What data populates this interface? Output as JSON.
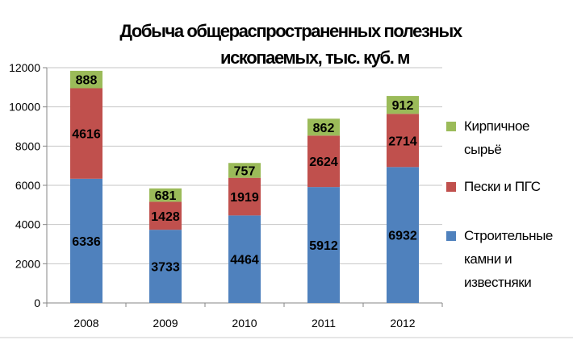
{
  "chart_data": {
    "type": "bar",
    "stacked": true,
    "title": "Добыча общераспространенных полезных ископаемых, тыс. куб. м",
    "title_lines": [
      "Добыча общераспространенных полезных",
      "ископаемых, тыс. куб. м"
    ],
    "categories": [
      "2008",
      "2009",
      "2010",
      "2011",
      "2012"
    ],
    "series": [
      {
        "name": "Строительные камни и известняки",
        "name_lines": [
          "Строительные",
          "камни и",
          "известняки"
        ],
        "color": "#4f81bd",
        "values": [
          6336,
          3733,
          4464,
          5912,
          6932
        ]
      },
      {
        "name": "Пески и ПГС",
        "name_lines": [
          "Пески и ПГС"
        ],
        "color": "#c0504d",
        "values": [
          4616,
          1428,
          1919,
          2624,
          2714
        ]
      },
      {
        "name": "Кирпичное сырьё",
        "name_lines": [
          "Кирпичное",
          "сырьё"
        ],
        "color": "#9bbb59",
        "values": [
          888,
          681,
          757,
          862,
          912
        ]
      }
    ],
    "ylim": [
      0,
      12000
    ],
    "yticks": [
      0,
      2000,
      4000,
      6000,
      8000,
      10000,
      12000
    ],
    "xlabel": "",
    "ylabel": "",
    "grid": true,
    "legend": "right",
    "legend_order": [
      "Кирпичное сырьё",
      "Пески и ПГС",
      "Строительные камни и известняки"
    ]
  }
}
